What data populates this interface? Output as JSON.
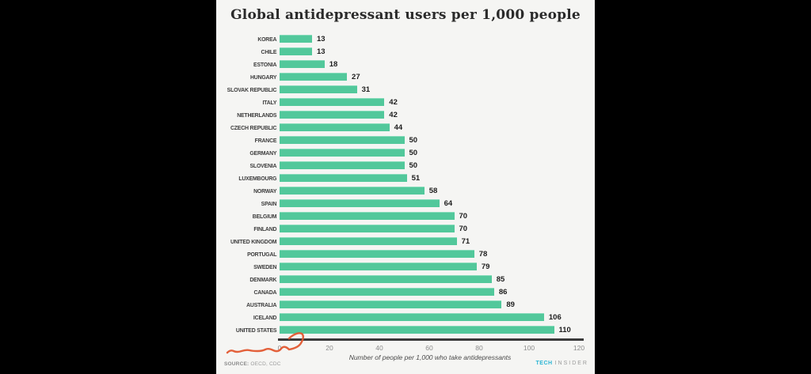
{
  "chart_data": {
    "type": "bar",
    "orientation": "horizontal",
    "title": "Global antidepressant users per 1,000 people",
    "xlabel": "Number of people per 1,000 who take antidepressants",
    "categories": [
      "KOREA",
      "CHILE",
      "ESTONIA",
      "HUNGARY",
      "SLOVAK REPUBLIC",
      "ITALY",
      "NETHERLANDS",
      "CZECH REPUBLIC",
      "FRANCE",
      "GERMANY",
      "SLOVENIA",
      "LUXEMBOURG",
      "NORWAY",
      "SPAIN",
      "BELGIUM",
      "FINLAND",
      "UNITED KINGDOM",
      "PORTUGAL",
      "SWEDEN",
      "DENMARK",
      "CANADA",
      "AUSTRALIA",
      "ICELAND",
      "UNITED STATES"
    ],
    "values": [
      13,
      13,
      18,
      27,
      31,
      42,
      42,
      44,
      50,
      50,
      50,
      51,
      58,
      64,
      70,
      70,
      71,
      78,
      79,
      85,
      86,
      89,
      106,
      110
    ],
    "xlim": [
      0,
      120
    ],
    "xticks": [
      0,
      20,
      40,
      60,
      80,
      100,
      120
    ],
    "grid": false,
    "legend": null,
    "bar_color": "#52c89b",
    "value_labels": true,
    "annotation": "hand-drawn orange scribble arrow pointing toward axis origin"
  },
  "footer": {
    "source_label": "SOURCE:",
    "source_value": "OECD, CDC",
    "brand_tech": "TECH",
    "brand_insider": "INSIDER"
  },
  "colors": {
    "letterbox": "#000000",
    "panel_background": "#f5f5f3",
    "bar": "#52c89b",
    "axis_line": "#3a3a3a",
    "annotation_orange": "#e2572f",
    "brand_cyan": "#2ab5d4"
  }
}
